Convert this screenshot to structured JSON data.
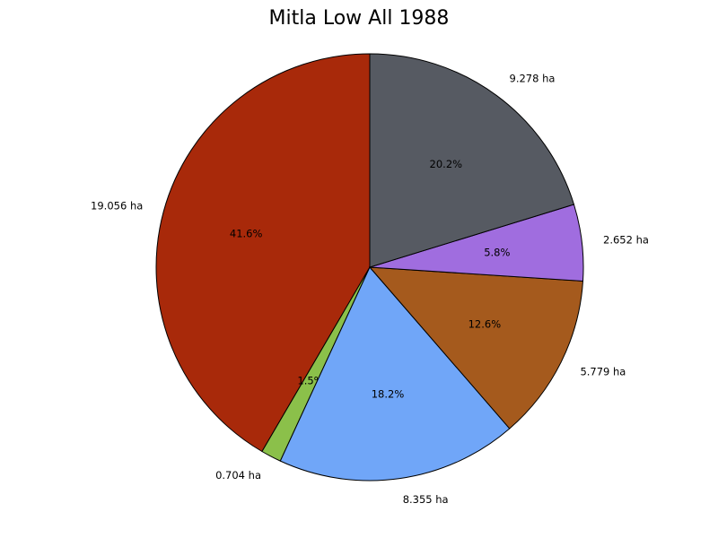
{
  "chart_data": {
    "type": "pie",
    "title": "Mitla Low All 1988",
    "start_angle_deg": 90,
    "direction": "counterclockwise",
    "slices": [
      {
        "value": 19.056,
        "value_label": "19.056 ha",
        "pct_label": "41.6%",
        "color": "#a8290a"
      },
      {
        "value": 0.704,
        "value_label": "0.704 ha",
        "pct_label": "1.5%",
        "color": "#8bc04a"
      },
      {
        "value": 8.355,
        "value_label": "8.355 ha",
        "pct_label": "18.2%",
        "color": "#70a6f8"
      },
      {
        "value": 5.779,
        "value_label": "5.779 ha",
        "pct_label": "12.6%",
        "color": "#a55a1d"
      },
      {
        "value": 2.652,
        "value_label": "2.652 ha",
        "pct_label": "5.8%",
        "color": "#a06ddf"
      },
      {
        "value": 9.278,
        "value_label": "9.278 ha",
        "pct_label": "20.2%",
        "color": "#565a62"
      }
    ]
  }
}
